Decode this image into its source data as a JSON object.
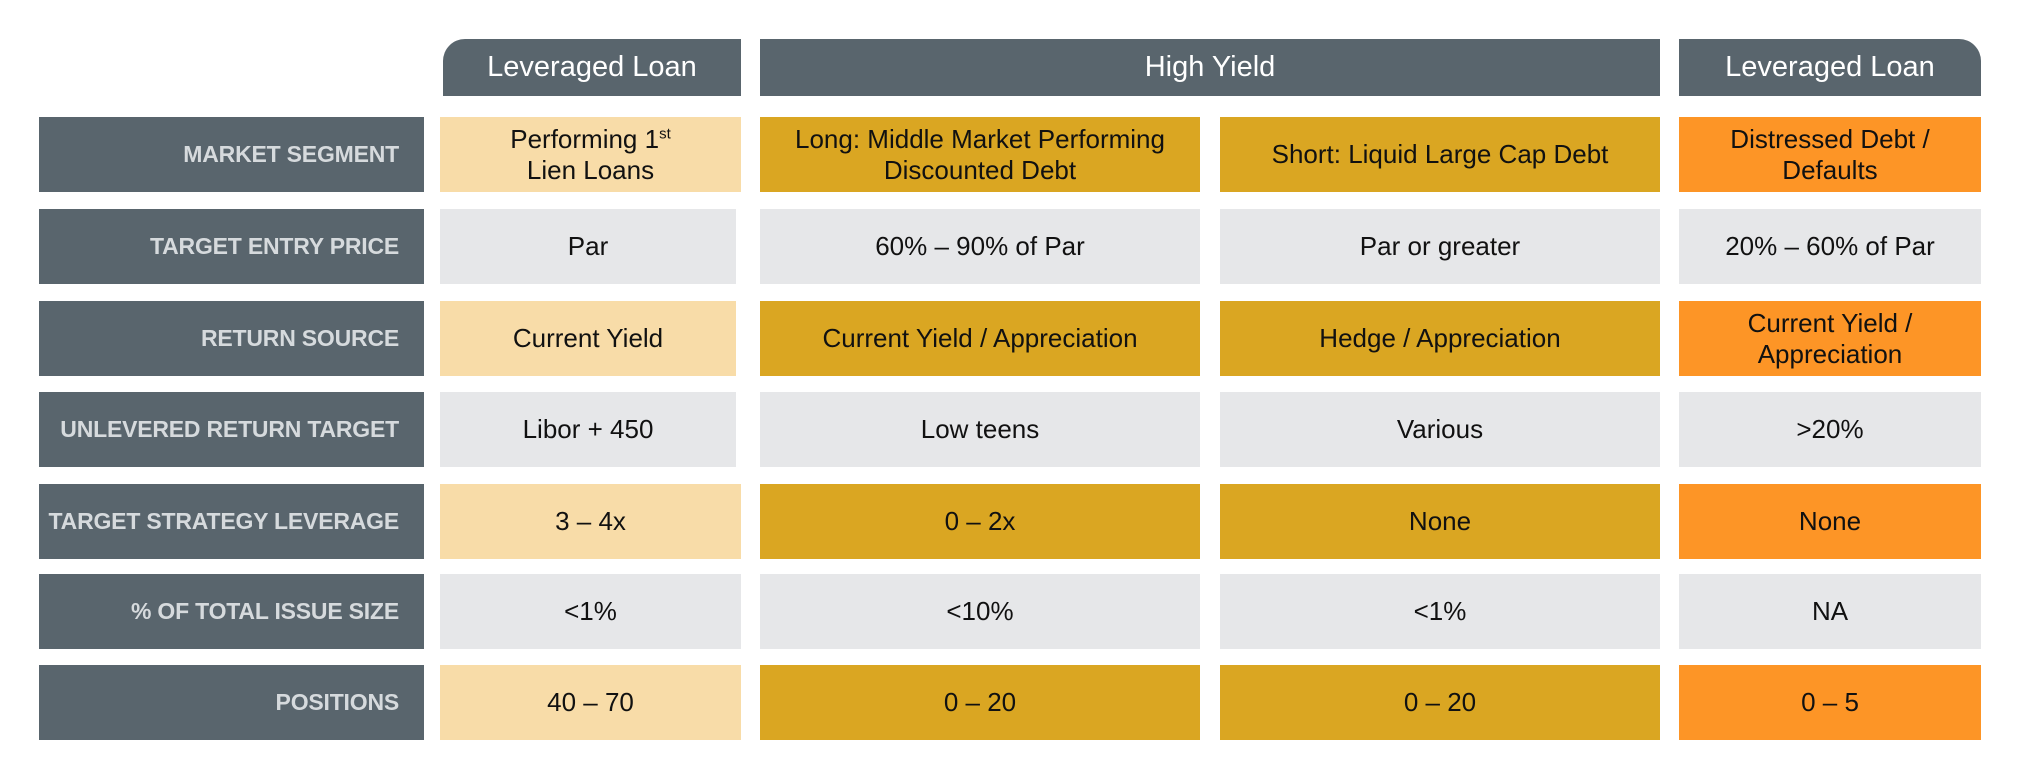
{
  "headers": {
    "col1": "Leveraged Loan",
    "high_yield": "High Yield",
    "col4": "Leveraged Loan"
  },
  "labels": {
    "market_segment": "MARKET SEGMENT",
    "target_entry_price": "TARGET ENTRY PRICE",
    "return_source": "RETURN SOURCE",
    "unlevered_return_target": "UNLEVERED RETURN TARGET",
    "target_strategy_leverage": "TARGET STRATEGY LEVERAGE",
    "pct_total_issue_size": "% OF TOTAL ISSUE SIZE",
    "positions": "POSITIONS"
  },
  "market_segment": {
    "c1_line1": "Performing 1",
    "c1_sup": "st",
    "c1_line2": "Lien Loans",
    "c2": "Long: Middle Market Performing Discounted Debt",
    "c3": "Short: Liquid Large Cap Debt",
    "c4": "Distressed Debt / Defaults"
  },
  "target_entry_price": {
    "c1": "Par",
    "c2": "60% – 90% of Par",
    "c3": "Par or greater",
    "c4": "20% – 60% of Par"
  },
  "return_source": {
    "c1": "Current Yield",
    "c2": "Current Yield / Appreciation",
    "c3": "Hedge / Appreciation",
    "c4": "Current Yield / Appreciation"
  },
  "unlevered_return_target": {
    "c1": "Libor + 450",
    "c2": "Low teens",
    "c3": "Various",
    "c4": ">20%"
  },
  "target_strategy_leverage": {
    "c1": "3 – 4x",
    "c2": "0 – 2x",
    "c3": "None",
    "c4": "None"
  },
  "pct_total_issue_size": {
    "c1": "<1%",
    "c2": "<10%",
    "c3": "<1%",
    "c4": "NA"
  },
  "positions": {
    "c1": "40 – 70",
    "c2": "0 – 20",
    "c3": "0 – 20",
    "c4": "0 – 5"
  },
  "colors": {
    "header": "#59656d",
    "label_text": "#d6dadd",
    "cream": "#f8dca8",
    "gold": "#daa622",
    "orange": "#fd9526",
    "grey": "#e6e7e9"
  }
}
